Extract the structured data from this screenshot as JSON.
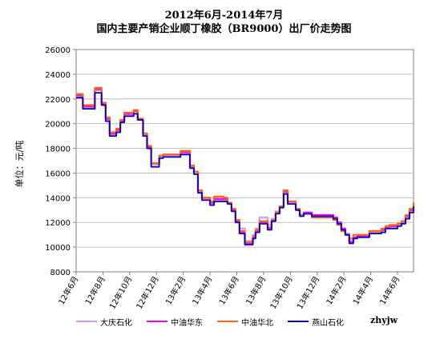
{
  "chart_data": {
    "type": "line",
    "title": "2012年6月-2014年7月",
    "subtitle": "国内主要产销企业顺丁橡胶（BR9000）出厂价走势图",
    "ylabel": "单位：元/吨",
    "xlabel": "",
    "ylim": [
      8000,
      26000
    ],
    "yticks": [
      8000,
      10000,
      12000,
      14000,
      16000,
      18000,
      20000,
      22000,
      24000,
      26000
    ],
    "x_tick_labels": [
      "12年6月",
      "12年8月",
      "12年10月",
      "12年12月",
      "13年2月",
      "13年4月",
      "13年6月",
      "13年8月",
      "13年10月",
      "13年12月",
      "14年2月",
      "14年4月",
      "14年6月"
    ],
    "grid": true,
    "legend_position": "bottom",
    "watermark": "zhyjw",
    "series": [
      {
        "name": "大庆石化",
        "color": "#cc99ff",
        "x": [
          0,
          0.5,
          1,
          1.4,
          1.6,
          1.9,
          2.2,
          2.5,
          2.8,
          3,
          3.3,
          3.6,
          3.9,
          4.3,
          4.6,
          5,
          5.3,
          5.6,
          5.9,
          6.2,
          6.5,
          6.8,
          7.2,
          7.5,
          7.8,
          8,
          8.2,
          8.5,
          8.8,
          9.1,
          9.4,
          9.7,
          10,
          10.3,
          10.6,
          11,
          11.3,
          11.6,
          11.9,
          12.2,
          12.6,
          13,
          13.2,
          13.4,
          13.7,
          14,
          14.3,
          14.6,
          14.9,
          15.2,
          15.5,
          15.8,
          16.1,
          16.4,
          16.7,
          17,
          17.3,
          17.6,
          18,
          18.3,
          18.6,
          18.9,
          19.2,
          19.5,
          19.8,
          20.1,
          20.4,
          20.7,
          21,
          21.3,
          21.6,
          21.9,
          22.2,
          22.5,
          22.8,
          23.1,
          23.4,
          23.7,
          24,
          24.3,
          24.6,
          24.9,
          25.2
        ],
        "values": [
          22200,
          21300,
          21300,
          22700,
          22700,
          21600,
          20300,
          19100,
          19100,
          19400,
          20200,
          20700,
          20700,
          21000,
          20300,
          19100,
          18100,
          16700,
          16700,
          17300,
          17400,
          17400,
          17400,
          17400,
          17600,
          17600,
          17600,
          16500,
          16000,
          14500,
          13900,
          13900,
          13500,
          13800,
          13800,
          13800,
          13600,
          13000,
          12200,
          11500,
          10500,
          10500,
          11000,
          11500,
          12400,
          12400,
          11800,
          12300,
          12900,
          13300,
          14400,
          13600,
          13600,
          13000,
          12600,
          12800,
          12800,
          12600,
          12600,
          12600,
          12600,
          12600,
          12400,
          12000,
          11500,
          11100,
          10500,
          10800,
          10900,
          10900,
          10900,
          11200,
          11200,
          11200,
          11300,
          11500,
          11600,
          11600,
          11800,
          12000,
          12400,
          12900,
          13400
        ]
      },
      {
        "name": "中油华东",
        "color": "#ff00ff",
        "x": [
          0,
          0.5,
          1,
          1.4,
          1.6,
          1.9,
          2.2,
          2.5,
          2.8,
          3,
          3.3,
          3.6,
          3.9,
          4.3,
          4.6,
          5,
          5.3,
          5.6,
          5.9,
          6.2,
          6.5,
          6.8,
          7.2,
          7.5,
          7.8,
          8,
          8.2,
          8.5,
          8.8,
          9.1,
          9.4,
          9.7,
          10,
          10.3,
          10.6,
          11,
          11.3,
          11.6,
          11.9,
          12.2,
          12.6,
          13,
          13.2,
          13.4,
          13.7,
          14,
          14.3,
          14.6,
          14.9,
          15.2,
          15.5,
          15.8,
          16.1,
          16.4,
          16.7,
          17,
          17.3,
          17.6,
          18,
          18.3,
          18.6,
          18.9,
          19.2,
          19.5,
          19.8,
          20.1,
          20.4,
          20.7,
          21,
          21.3,
          21.6,
          21.9,
          22.2,
          22.5,
          22.8,
          23.1,
          23.4,
          23.7,
          24,
          24.3,
          24.6,
          24.9,
          25.2
        ],
        "values": [
          22300,
          21400,
          21400,
          22800,
          22800,
          21600,
          20400,
          19200,
          19200,
          19500,
          20200,
          20800,
          20800,
          21000,
          20400,
          19200,
          18100,
          16800,
          16800,
          17400,
          17500,
          17500,
          17500,
          17500,
          17700,
          17700,
          17700,
          16600,
          16100,
          14600,
          14000,
          14000,
          13600,
          13900,
          13900,
          13900,
          13600,
          13000,
          12100,
          11200,
          10300,
          10300,
          10800,
          11300,
          12000,
          12000,
          11500,
          12200,
          12800,
          13300,
          14500,
          13700,
          13700,
          13100,
          12600,
          12800,
          12800,
          12600,
          12600,
          12600,
          12600,
          12600,
          12400,
          12000,
          11500,
          11000,
          10400,
          10800,
          10900,
          10900,
          10900,
          11300,
          11300,
          11300,
          11400,
          11600,
          11700,
          11700,
          11900,
          12100,
          12500,
          13000,
          13500
        ]
      },
      {
        "name": "中油华北",
        "color": "#ff6600",
        "x": [
          0,
          0.5,
          1,
          1.4,
          1.6,
          1.9,
          2.2,
          2.5,
          2.8,
          3,
          3.3,
          3.6,
          3.9,
          4.3,
          4.6,
          5,
          5.3,
          5.6,
          5.9,
          6.2,
          6.5,
          6.8,
          7.2,
          7.5,
          7.8,
          8,
          8.2,
          8.5,
          8.8,
          9.1,
          9.4,
          9.7,
          10,
          10.3,
          10.6,
          11,
          11.3,
          11.6,
          11.9,
          12.2,
          12.6,
          13,
          13.2,
          13.4,
          13.7,
          14,
          14.3,
          14.6,
          14.9,
          15.2,
          15.5,
          15.8,
          16.1,
          16.4,
          16.7,
          17,
          17.3,
          17.6,
          18,
          18.3,
          18.6,
          18.9,
          19.2,
          19.5,
          19.8,
          20.1,
          20.4,
          20.7,
          21,
          21.3,
          21.6,
          21.9,
          22.2,
          22.5,
          22.8,
          23.1,
          23.4,
          23.7,
          24,
          24.3,
          24.6,
          24.9,
          25.2
        ],
        "values": [
          22400,
          21500,
          21500,
          22900,
          22900,
          21700,
          20500,
          19300,
          19300,
          19600,
          20300,
          20900,
          20900,
          21100,
          20400,
          19200,
          18200,
          16800,
          16800,
          17400,
          17500,
          17500,
          17500,
          17500,
          17800,
          17800,
          17800,
          16600,
          16100,
          14600,
          14000,
          14000,
          13700,
          14100,
          14100,
          14000,
          13600,
          13100,
          12200,
          11300,
          10400,
          10400,
          10900,
          11400,
          12100,
          12100,
          11600,
          12200,
          12800,
          13300,
          14600,
          13700,
          13700,
          13100,
          12600,
          12700,
          12700,
          12400,
          12400,
          12400,
          12400,
          12400,
          12200,
          11800,
          11300,
          11000,
          10700,
          11000,
          11000,
          11000,
          11000,
          11300,
          11300,
          11300,
          11500,
          11700,
          11800,
          11800,
          11900,
          12100,
          12600,
          13100,
          13600
        ]
      },
      {
        "name": "燕山石化",
        "color": "#0000cc",
        "x": [
          0,
          0.5,
          1,
          1.4,
          1.6,
          1.9,
          2.2,
          2.5,
          2.8,
          3,
          3.3,
          3.6,
          3.9,
          4.3,
          4.6,
          5,
          5.3,
          5.6,
          5.9,
          6.2,
          6.5,
          6.8,
          7.2,
          7.5,
          7.8,
          8,
          8.2,
          8.5,
          8.8,
          9.1,
          9.4,
          9.7,
          10,
          10.3,
          10.6,
          11,
          11.3,
          11.6,
          11.9,
          12.2,
          12.6,
          13,
          13.2,
          13.4,
          13.7,
          14,
          14.3,
          14.6,
          14.9,
          15.2,
          15.5,
          15.8,
          16.1,
          16.4,
          16.7,
          17,
          17.3,
          17.6,
          18,
          18.3,
          18.6,
          18.9,
          19.2,
          19.5,
          19.8,
          20.1,
          20.4,
          20.7,
          21,
          21.3,
          21.6,
          21.9,
          22.2,
          22.5,
          22.8,
          23.1,
          23.4,
          23.7,
          24,
          24.3,
          24.6,
          24.9,
          25.2
        ],
        "values": [
          22100,
          21200,
          21200,
          22500,
          22500,
          21500,
          20200,
          19000,
          19000,
          19300,
          20100,
          20600,
          20600,
          20800,
          20300,
          19000,
          18000,
          16500,
          16500,
          17200,
          17300,
          17300,
          17300,
          17300,
          17500,
          17500,
          17500,
          16400,
          15900,
          14400,
          13800,
          13800,
          13400,
          13700,
          13700,
          13700,
          13500,
          12900,
          12000,
          11100,
          10200,
          10200,
          10700,
          11200,
          11900,
          11900,
          11400,
          12100,
          12700,
          13200,
          14300,
          13500,
          13500,
          13000,
          12500,
          12700,
          12700,
          12500,
          12500,
          12500,
          12500,
          12500,
          12300,
          11900,
          11400,
          11000,
          10300,
          10700,
          10800,
          10800,
          10800,
          11100,
          11100,
          11100,
          11200,
          11500,
          11500,
          11500,
          11700,
          11900,
          12300,
          12800,
          13300
        ]
      }
    ]
  }
}
